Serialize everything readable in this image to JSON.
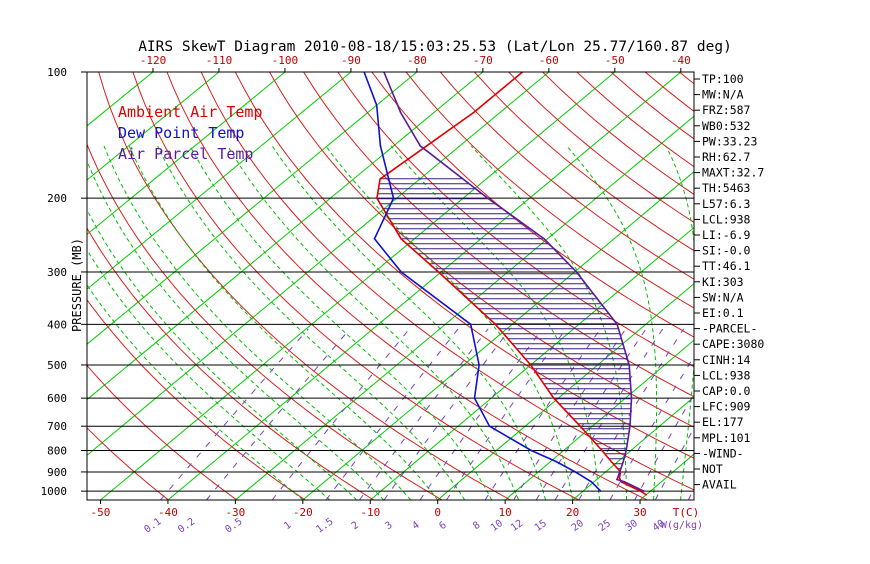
{
  "chart_data": {
    "type": "line",
    "title": "AIRS SkewT Diagram 2010-08-18/15:03:25.53 (Lat/Lon 25.77/160.87 deg)",
    "ylabel": "PRESSURE (MB)",
    "xlabel": "T(C)",
    "mixing_ratio_label": "W(g/kg)",
    "ylim": [
      1050,
      100
    ],
    "xlim_bottom": [
      -52,
      38
    ],
    "xlim_top": [
      -130,
      -38
    ],
    "y_ticks": [
      100,
      200,
      300,
      400,
      500,
      600,
      700,
      800,
      900,
      1000
    ],
    "isobars": [
      200,
      300,
      400,
      500,
      600,
      700,
      800,
      900,
      1000
    ],
    "x_ticks_bottom": [
      -50,
      -40,
      -30,
      -20,
      -10,
      0,
      10,
      20,
      30
    ],
    "x_ticks_top": [
      -120,
      -110,
      -100,
      -90,
      -80,
      -70,
      -60,
      -50,
      -40
    ],
    "mixing_ratio_labels": [
      "0.1",
      "0.2",
      "0.5",
      "1",
      "1.5",
      "2",
      "3",
      "4",
      "6",
      "8",
      "10",
      "12",
      "15",
      "20",
      "25",
      "30",
      "40"
    ],
    "mixing_ratio_label_x": [
      -42,
      -37,
      -30,
      -22,
      -16.5,
      -12,
      -7,
      -3,
      1,
      6,
      9,
      12,
      15.5,
      21,
      25,
      29,
      33
    ],
    "legend": [
      {
        "label": "Ambient Air Temp",
        "color": "#e00000"
      },
      {
        "label": "Dew Point Temp",
        "color": "#1010d0"
      },
      {
        "label": "Air Parcel Temp",
        "color": "#5a1a9a"
      }
    ],
    "series": [
      {
        "name": "Ambient Air Temp",
        "color": "#e00000",
        "p": [
          1020,
          1000,
          950,
          930,
          900,
          850,
          800,
          700,
          600,
          500,
          400,
          300,
          250,
          200,
          180,
          150,
          125,
          100
        ],
        "t": [
          30,
          28.5,
          24,
          23.1,
          22.2,
          19,
          15.7,
          8.2,
          -0.7,
          -10,
          -22.5,
          -40.4,
          -52,
          -63,
          -66,
          -65,
          -64,
          -64
        ]
      },
      {
        "name": "Dew Point Temp",
        "color": "#1010d0",
        "p": [
          1000,
          950,
          900,
          850,
          800,
          700,
          600,
          500,
          400,
          300,
          250,
          200,
          150,
          120,
          100
        ],
        "t": [
          22.6,
          19.6,
          15.5,
          10.8,
          5.2,
          -5.3,
          -12.5,
          -17.7,
          -26.2,
          -46,
          -56,
          -60.5,
          -72,
          -80,
          -88
        ]
      },
      {
        "name": "Air Parcel Temp",
        "color": "#5a1a9a",
        "p": [
          1000,
          950,
          938,
          900,
          850,
          800,
          700,
          600,
          500,
          400,
          300,
          250,
          200,
          150,
          125,
          100
        ],
        "t": [
          29,
          24.5,
          23,
          22.1,
          20.8,
          19.3,
          15.6,
          10.9,
          4.7,
          -4.3,
          -19.7,
          -30.5,
          -46.3,
          -66,
          -75,
          -85
        ]
      }
    ],
    "cape_shading": {
      "p_bottom": 909,
      "p_top": 177,
      "color": "#3a1b82"
    }
  },
  "stats_panel": [
    "TP:100",
    "MW:N/A",
    "FRZ:587",
    "WB0:532",
    "PW:33.23",
    "RH:62.7",
    "MAXT:32.7",
    "TH:5463",
    "L57:6.3",
    "LCL:938",
    "LI:-6.9",
    "SI:-0.0",
    "TT:46.1",
    "KI:303",
    "SW:N/A",
    "EI:0.1",
    "-PARCEL-",
    "CAPE:3080",
    "CINH:14",
    "LCL:938",
    "CAP:0.0",
    "LFC:909",
    "EL:177",
    "MPL:101",
    "-WIND-",
    "NOT",
    "AVAIL"
  ],
  "colors": {
    "isotherm": "#00cc00",
    "dry_adiabat": "#d82020",
    "moist_adiabat": "#00c000",
    "mixing_ratio": "#7a40c0",
    "isobar": "#000000",
    "tick_label": "#c00000",
    "mix_label": "#7a40c0"
  }
}
